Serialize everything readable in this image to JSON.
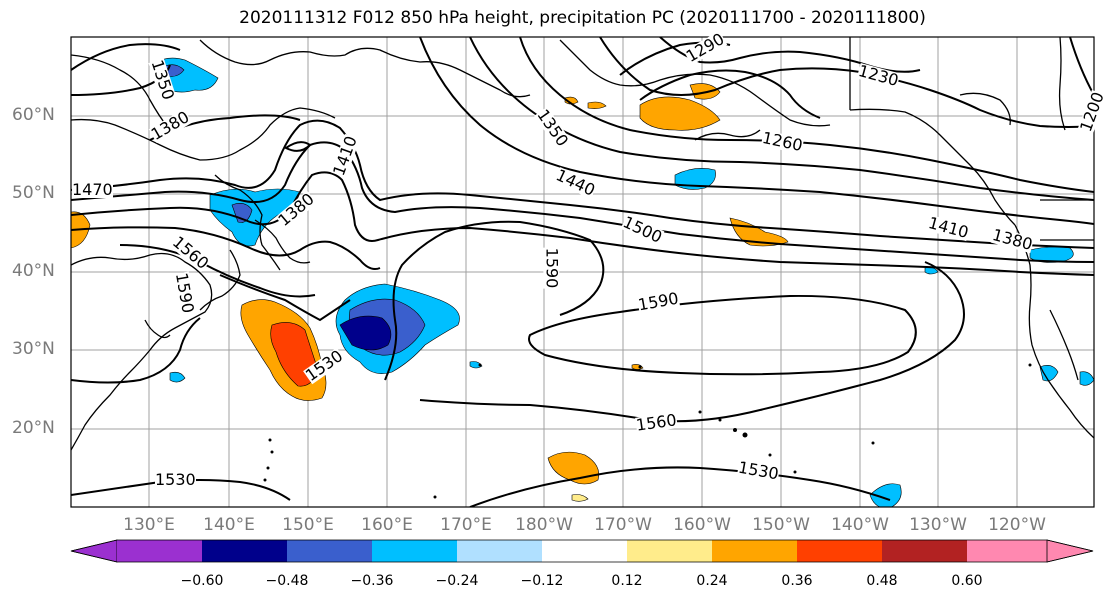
{
  "title": "2020111312 F012 850 hPa height, precipitation PC (2020111700 - 2020111800)",
  "lat_labels": [
    "60°N",
    "50°N",
    "40°N",
    "30°N",
    "20°N"
  ],
  "lon_labels": [
    "130°E",
    "140°E",
    "150°E",
    "160°E",
    "170°E",
    "180°W",
    "170°W",
    "160°W",
    "150°W",
    "140°W",
    "130°W",
    "120°W"
  ],
  "contour_labels": [
    "1350",
    "1380",
    "1410",
    "1470",
    "1560",
    "1590",
    "1380",
    "1530",
    "1350",
    "1440",
    "1500",
    "1590",
    "1590",
    "1560",
    "1530",
    "1530",
    "1230",
    "1260",
    "1410",
    "1380",
    "1200",
    "1290"
  ],
  "colorbar": {
    "ticks": [
      "−0.60",
      "−0.48",
      "−0.36",
      "−0.24",
      "−0.12",
      "0.12",
      "0.24",
      "0.36",
      "0.48",
      "0.60"
    ],
    "colors": [
      "#9b30d0",
      "#00008b",
      "#3a5fcd",
      "#00bfff",
      "#b0e0ff",
      "#ffffff",
      "#ffec8b",
      "#ffa500",
      "#ff4000",
      "#b22222",
      "#ff88b0"
    ]
  },
  "palette": {
    "land_line": "#000000",
    "grid": "#a0a0a0",
    "axis_label": "#7a7a7a"
  }
}
